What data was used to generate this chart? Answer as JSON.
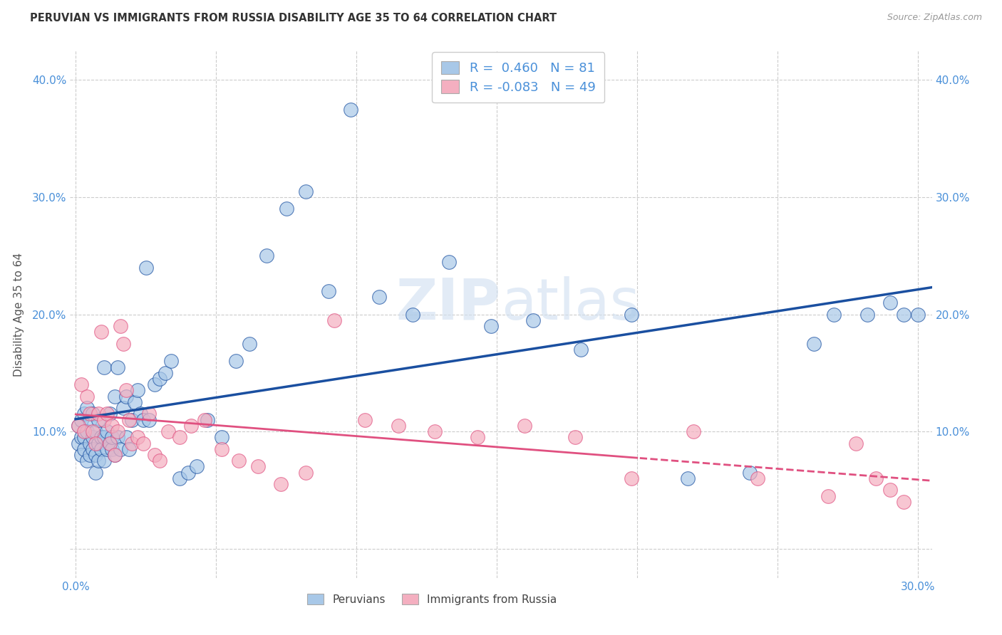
{
  "title": "PERUVIAN VS IMMIGRANTS FROM RUSSIA DISABILITY AGE 35 TO 64 CORRELATION CHART",
  "source": "Source: ZipAtlas.com",
  "ylabel": "Disability Age 35 to 64",
  "xlim": [
    -0.002,
    0.305
  ],
  "ylim": [
    -0.025,
    0.425
  ],
  "blue_R": 0.46,
  "blue_N": 81,
  "pink_R": -0.083,
  "pink_N": 49,
  "blue_color": "#a8c8e8",
  "pink_color": "#f4afc0",
  "blue_line_color": "#1a4fa0",
  "pink_line_color": "#e05080",
  "watermark": "ZIPatlas",
  "blue_scatter_x": [
    0.001,
    0.001,
    0.002,
    0.002,
    0.002,
    0.003,
    0.003,
    0.003,
    0.004,
    0.004,
    0.004,
    0.005,
    0.005,
    0.005,
    0.006,
    0.006,
    0.006,
    0.007,
    0.007,
    0.007,
    0.008,
    0.008,
    0.008,
    0.009,
    0.009,
    0.01,
    0.01,
    0.01,
    0.011,
    0.011,
    0.012,
    0.012,
    0.013,
    0.013,
    0.014,
    0.014,
    0.015,
    0.015,
    0.016,
    0.017,
    0.018,
    0.018,
    0.019,
    0.02,
    0.021,
    0.022,
    0.023,
    0.024,
    0.025,
    0.026,
    0.028,
    0.03,
    0.032,
    0.034,
    0.037,
    0.04,
    0.043,
    0.047,
    0.052,
    0.057,
    0.062,
    0.068,
    0.075,
    0.082,
    0.09,
    0.098,
    0.108,
    0.12,
    0.133,
    0.148,
    0.163,
    0.18,
    0.198,
    0.218,
    0.24,
    0.263,
    0.27,
    0.282,
    0.29,
    0.295,
    0.3
  ],
  "blue_scatter_y": [
    0.105,
    0.09,
    0.095,
    0.11,
    0.08,
    0.115,
    0.095,
    0.085,
    0.12,
    0.1,
    0.075,
    0.11,
    0.09,
    0.08,
    0.095,
    0.115,
    0.085,
    0.1,
    0.08,
    0.065,
    0.09,
    0.11,
    0.075,
    0.095,
    0.085,
    0.155,
    0.095,
    0.075,
    0.1,
    0.085,
    0.09,
    0.115,
    0.085,
    0.095,
    0.13,
    0.08,
    0.095,
    0.155,
    0.085,
    0.12,
    0.095,
    0.13,
    0.085,
    0.11,
    0.125,
    0.135,
    0.115,
    0.11,
    0.24,
    0.11,
    0.14,
    0.145,
    0.15,
    0.16,
    0.06,
    0.065,
    0.07,
    0.11,
    0.095,
    0.16,
    0.175,
    0.25,
    0.29,
    0.305,
    0.22,
    0.375,
    0.215,
    0.2,
    0.245,
    0.19,
    0.195,
    0.17,
    0.2,
    0.06,
    0.065,
    0.175,
    0.2,
    0.2,
    0.21,
    0.2,
    0.2
  ],
  "pink_scatter_x": [
    0.001,
    0.002,
    0.003,
    0.004,
    0.005,
    0.006,
    0.007,
    0.008,
    0.009,
    0.01,
    0.011,
    0.012,
    0.013,
    0.014,
    0.015,
    0.016,
    0.017,
    0.018,
    0.019,
    0.02,
    0.022,
    0.024,
    0.026,
    0.028,
    0.03,
    0.033,
    0.037,
    0.041,
    0.046,
    0.052,
    0.058,
    0.065,
    0.073,
    0.082,
    0.092,
    0.103,
    0.115,
    0.128,
    0.143,
    0.16,
    0.178,
    0.198,
    0.22,
    0.243,
    0.268,
    0.278,
    0.285,
    0.29,
    0.295
  ],
  "pink_scatter_y": [
    0.105,
    0.14,
    0.1,
    0.13,
    0.115,
    0.1,
    0.09,
    0.115,
    0.185,
    0.11,
    0.115,
    0.09,
    0.105,
    0.08,
    0.1,
    0.19,
    0.175,
    0.135,
    0.11,
    0.09,
    0.095,
    0.09,
    0.115,
    0.08,
    0.075,
    0.1,
    0.095,
    0.105,
    0.11,
    0.085,
    0.075,
    0.07,
    0.055,
    0.065,
    0.195,
    0.11,
    0.105,
    0.1,
    0.095,
    0.105,
    0.095,
    0.06,
    0.1,
    0.06,
    0.045,
    0.09,
    0.06,
    0.05,
    0.04
  ],
  "background_color": "#ffffff",
  "grid_color": "#cccccc"
}
